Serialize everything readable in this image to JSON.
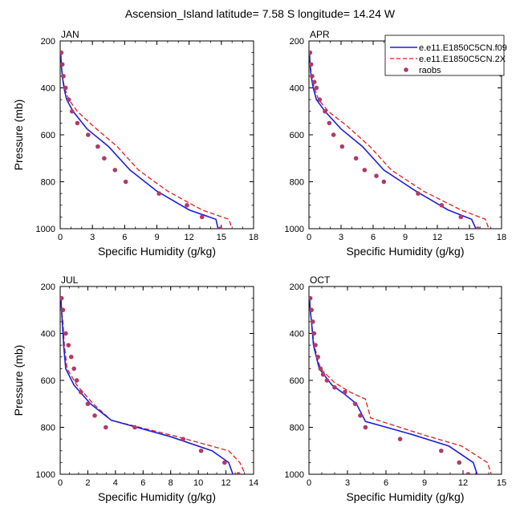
{
  "title": "Ascension_Island  latitude= 7.58 S longitude= 14.24 W",
  "legend": {
    "entries": [
      {
        "label": "e.e11.E1850C5CN.f09",
        "style": "solid",
        "color": "#1f1fd6"
      },
      {
        "label": "e.e11.E1850C5CN.2X",
        "style": "dashed",
        "color": "#e01f1f"
      },
      {
        "label": "raobs",
        "style": "dots",
        "color": "#b03a6a"
      }
    ]
  },
  "colors": {
    "model1": "#1f1fd6",
    "model2": "#e01f1f",
    "obs": "#b03a6a"
  },
  "chart_data": [
    {
      "type": "line",
      "panel_label": "JAN",
      "xlabel": "Specific Humidity (g/kg)",
      "ylabel": "Pressure (mb)",
      "xlim": [
        0,
        18
      ],
      "ylim": [
        1000,
        200
      ],
      "xticks": [
        0,
        3,
        6,
        9,
        12,
        15,
        18
      ],
      "yticks": [
        200,
        400,
        600,
        800,
        1000
      ],
      "y_reversed": true,
      "series": [
        {
          "name": "e.e11.E1850C5CN.f09",
          "x": [
            0.05,
            0.1,
            0.2,
            0.35,
            0.6,
            1.2,
            2.5,
            4.5,
            6.5,
            9.0,
            12.0,
            14.5,
            14.7
          ],
          "y": [
            250,
            300,
            350,
            400,
            450,
            500,
            575,
            650,
            750,
            840,
            920,
            960,
            1000
          ]
        },
        {
          "name": "e.e11.E1850C5CN.2X",
          "x": [
            0.05,
            0.1,
            0.2,
            0.4,
            0.8,
            1.6,
            3.0,
            5.3,
            7.3,
            10.0,
            13.2,
            15.7,
            16.0
          ],
          "y": [
            250,
            300,
            350,
            400,
            450,
            500,
            560,
            650,
            750,
            840,
            920,
            960,
            1000
          ]
        },
        {
          "name": "raobs",
          "x": [
            0.1,
            0.2,
            0.3,
            0.5,
            0.8,
            1.1,
            1.6,
            2.6,
            3.5,
            4.1,
            5.1,
            6.1,
            9.2,
            11.8,
            13.2,
            14.9
          ],
          "y": [
            250,
            300,
            350,
            400,
            450,
            500,
            550,
            600,
            650,
            700,
            750,
            800,
            850,
            900,
            950,
            1000
          ]
        }
      ]
    },
    {
      "type": "line",
      "panel_label": "APR",
      "xlabel": "Specific Humidity (g/kg)",
      "ylabel": "",
      "xlim": [
        0,
        18
      ],
      "ylim": [
        1000,
        200
      ],
      "xticks": [
        0,
        3,
        6,
        9,
        12,
        15,
        18
      ],
      "yticks": [
        200,
        400,
        600,
        800,
        1000
      ],
      "y_reversed": true,
      "series": [
        {
          "name": "e.e11.E1850C5CN.f09",
          "x": [
            0.05,
            0.1,
            0.2,
            0.4,
            0.7,
            1.5,
            3.0,
            5.0,
            7.0,
            10.0,
            13.0,
            15.2,
            15.6
          ],
          "y": [
            250,
            300,
            350,
            400,
            450,
            500,
            575,
            650,
            750,
            840,
            920,
            960,
            1000
          ]
        },
        {
          "name": "e.e11.E1850C5CN.2X",
          "x": [
            0.05,
            0.12,
            0.25,
            0.5,
            0.9,
            1.8,
            3.5,
            5.7,
            7.7,
            10.7,
            14.2,
            16.5,
            16.8
          ],
          "y": [
            250,
            300,
            350,
            400,
            450,
            500,
            560,
            650,
            750,
            840,
            920,
            960,
            1000
          ]
        },
        {
          "name": "raobs",
          "x": [
            0.1,
            0.2,
            0.3,
            0.5,
            0.7,
            1.0,
            1.5,
            1.9,
            2.3,
            3.1,
            4.4,
            5.2,
            6.3,
            7.0,
            10.2,
            12.4,
            14.2,
            15.8
          ],
          "y": [
            250,
            300,
            350,
            375,
            400,
            450,
            500,
            550,
            600,
            650,
            700,
            750,
            775,
            800,
            850,
            900,
            950,
            1000
          ]
        }
      ]
    },
    {
      "type": "line",
      "panel_label": "JUL",
      "xlabel": "Specific Humidity (g/kg)",
      "ylabel": "Pressure (mb)",
      "xlim": [
        0,
        14
      ],
      "ylim": [
        1000,
        200
      ],
      "xticks": [
        0,
        2,
        4,
        6,
        8,
        10,
        12,
        14
      ],
      "yticks": [
        200,
        400,
        600,
        800,
        1000
      ],
      "y_reversed": true,
      "series": [
        {
          "name": "e.e11.E1850C5CN.f09",
          "x": [
            0.05,
            0.1,
            0.15,
            0.25,
            0.4,
            1.0,
            2.2,
            3.7,
            8.0,
            11.0,
            12.2,
            12.5
          ],
          "y": [
            250,
            300,
            350,
            450,
            550,
            620,
            700,
            770,
            840,
            900,
            950,
            1000
          ]
        },
        {
          "name": "e.e11.E1850C5CN.2X",
          "x": [
            0.05,
            0.1,
            0.2,
            0.3,
            0.5,
            1.2,
            2.4,
            3.7,
            8.5,
            12.2,
            13.0,
            13.4
          ],
          "y": [
            250,
            300,
            350,
            450,
            550,
            620,
            700,
            770,
            840,
            900,
            950,
            1000
          ]
        },
        {
          "name": "raobs",
          "x": [
            0.1,
            0.2,
            0.4,
            0.6,
            0.8,
            1.0,
            1.2,
            1.5,
            2.0,
            2.5,
            3.3,
            5.4,
            8.9,
            10.2,
            11.9,
            12.9
          ],
          "y": [
            250,
            300,
            400,
            450,
            500,
            550,
            600,
            650,
            700,
            750,
            800,
            800,
            850,
            900,
            950,
            1000
          ]
        }
      ]
    },
    {
      "type": "line",
      "panel_label": "OCT",
      "xlabel": "Specific Humidity (g/kg)",
      "ylabel": "",
      "xlim": [
        0,
        15
      ],
      "ylim": [
        1000,
        200
      ],
      "xticks": [
        0,
        3,
        6,
        9,
        12,
        15
      ],
      "yticks": [
        200,
        400,
        600,
        800,
        1000
      ],
      "y_reversed": true,
      "series": [
        {
          "name": "e.e11.E1850C5CN.f09",
          "x": [
            0.05,
            0.1,
            0.2,
            0.35,
            0.8,
            1.8,
            2.8,
            3.7,
            4.4,
            8.0,
            10.9,
            12.8,
            13.1
          ],
          "y": [
            250,
            300,
            350,
            450,
            550,
            620,
            660,
            700,
            775,
            830,
            880,
            950,
            1000
          ]
        },
        {
          "name": "e.e11.E1850C5CN.2X",
          "x": [
            0.05,
            0.1,
            0.2,
            0.4,
            0.9,
            2.0,
            3.2,
            4.4,
            4.8,
            8.8,
            11.9,
            13.9,
            14.2
          ],
          "y": [
            250,
            300,
            350,
            450,
            550,
            610,
            650,
            680,
            760,
            830,
            880,
            950,
            1000
          ]
        },
        {
          "name": "raobs",
          "x": [
            0.1,
            0.2,
            0.3,
            0.4,
            0.5,
            0.7,
            0.9,
            1.1,
            1.4,
            2.0,
            2.8,
            3.6,
            4.0,
            4.4,
            7.1,
            10.3,
            11.7,
            12.4
          ],
          "y": [
            250,
            300,
            350,
            400,
            450,
            500,
            550,
            575,
            600,
            630,
            650,
            700,
            750,
            800,
            850,
            900,
            950,
            1000
          ]
        }
      ]
    }
  ]
}
